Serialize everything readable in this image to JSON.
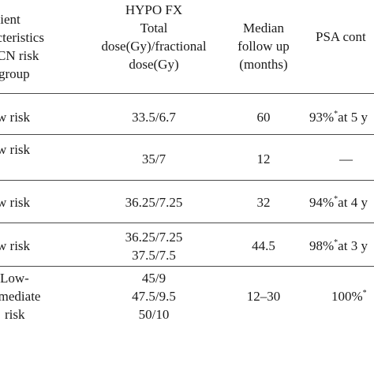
{
  "header": {
    "col1": [
      "atient",
      "acteristics",
      "CN risk",
      "group"
    ],
    "col2": [
      "HYPO FX",
      "Total",
      "dose(Gy)/fractional",
      "dose(Gy)"
    ],
    "col3": [
      "Median",
      "follow up",
      "(months)"
    ],
    "col4": [
      "PSA cont"
    ]
  },
  "rows": [
    {
      "risk": [
        "w risk"
      ],
      "dose": [
        "33.5/6.7"
      ],
      "followup": "60",
      "psa_value": "93%",
      "psa_mark": "*",
      "psa_rest": "at 5 y"
    },
    {
      "risk": [
        "w risk",
        ""
      ],
      "dose": [
        "",
        "35/7"
      ],
      "followup": "12",
      "psa_value": "—",
      "psa_mark": "",
      "psa_rest": ""
    },
    {
      "risk": [
        "w risk"
      ],
      "dose": [
        "36.25/7.25"
      ],
      "followup": "32",
      "psa_value": "94%",
      "psa_mark": "*",
      "psa_rest": "at 4 y"
    },
    {
      "risk": [
        "w risk"
      ],
      "dose": [
        "36.25/7.25",
        "37.5/7.5"
      ],
      "followup": "44.5",
      "psa_value": "98%",
      "psa_mark": "*",
      "psa_rest": "at 3 y"
    },
    {
      "risk": [
        "Low-",
        "rmediate",
        "risk"
      ],
      "dose": [
        "45/9",
        "47.5/9.5",
        "50/10"
      ],
      "followup": "12–30",
      "psa_value": "100%",
      "psa_mark": "*",
      "psa_rest": ""
    }
  ]
}
